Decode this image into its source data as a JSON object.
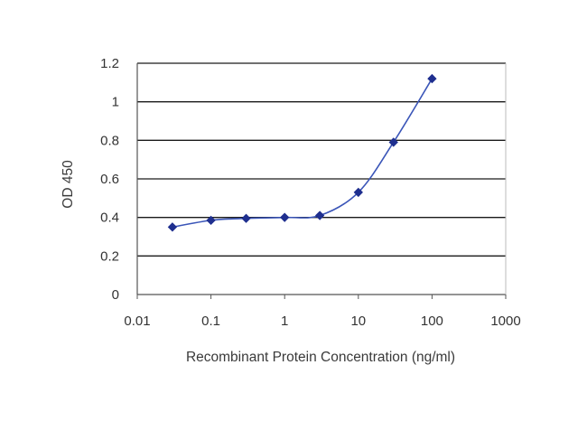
{
  "chart_data": {
    "type": "scatter",
    "title": "",
    "xlabel": "Recombinant Protein Concentration (ng/ml)",
    "ylabel": "OD 450",
    "xscale": "log",
    "xlim": [
      0.01,
      1000
    ],
    "ylim": [
      0,
      1.2
    ],
    "grid": "horizontal",
    "legend": "none",
    "xticks": [
      "0.01",
      "0.1",
      "1",
      "10",
      "100",
      "1000"
    ],
    "yticks": [
      "0",
      "0.2",
      "0.4",
      "0.6",
      "0.8",
      "1",
      "1.2"
    ],
    "series": [
      {
        "x": [
          0.03,
          0.1,
          0.3,
          1,
          3,
          10,
          30,
          100
        ],
        "y": [
          0.35,
          0.385,
          0.395,
          0.4,
          0.41,
          0.53,
          0.79,
          1.12
        ],
        "color": "#1f2f8f",
        "smooth": true,
        "marker": "diamond"
      }
    ]
  }
}
